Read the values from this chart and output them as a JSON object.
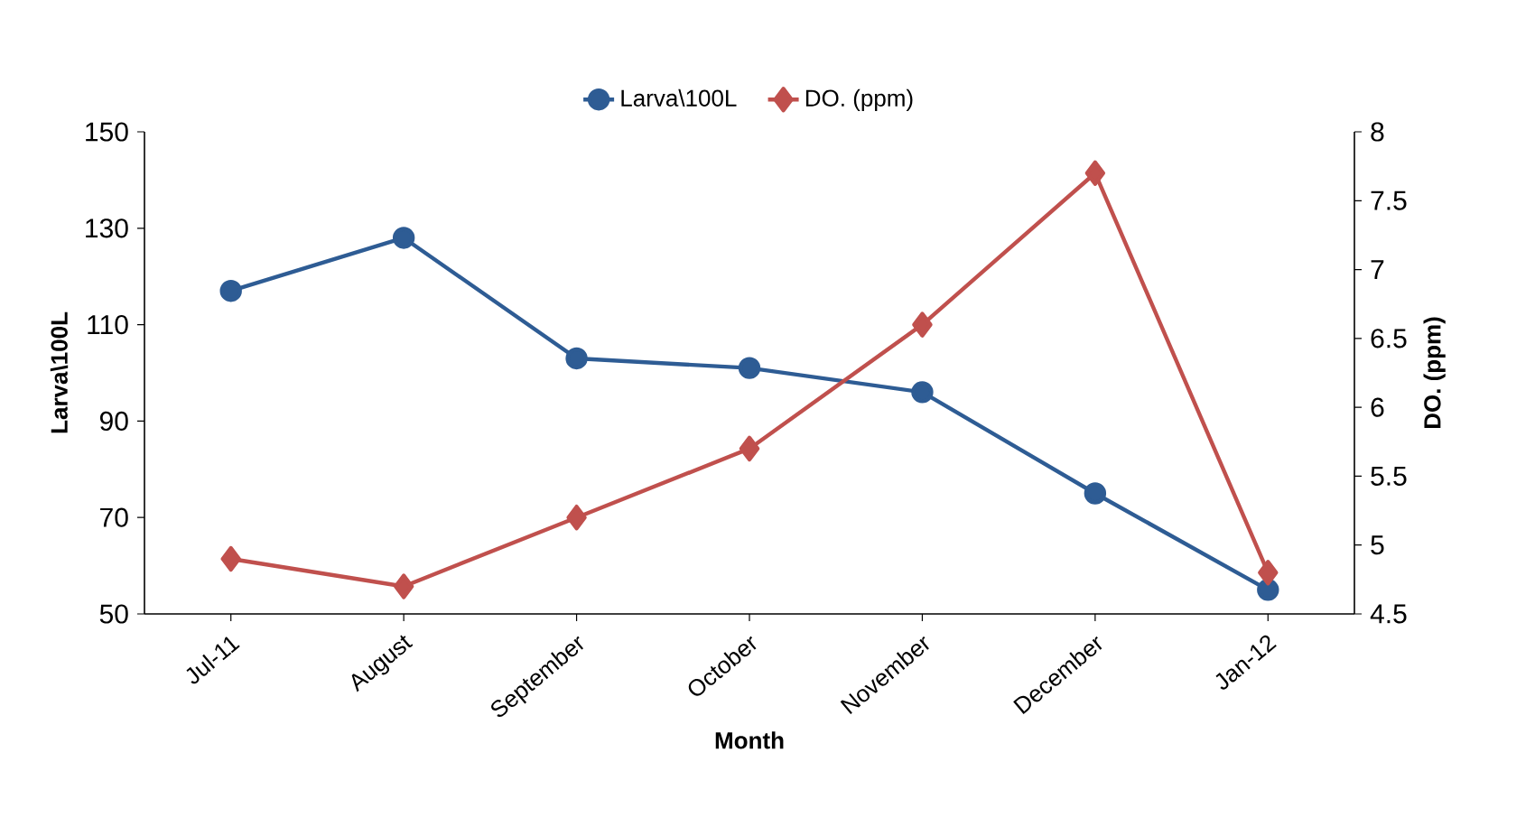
{
  "chart_data": {
    "type": "line",
    "xlabel": "Month",
    "ylabel": "Larva\\100L",
    "y2label": "DO. (ppm)",
    "categories": [
      "Jul-11",
      "August",
      "September",
      "October",
      "November",
      "December",
      "Jan-12"
    ],
    "series": [
      {
        "name": "Larva\\100L",
        "color": "#2e5c94",
        "marker": "circle",
        "values": [
          117,
          128,
          103,
          101,
          96,
          75,
          55
        ]
      },
      {
        "name": "DO. (ppm)",
        "color": "#c0504d",
        "marker": "diamond",
        "axis": "y2",
        "values": [
          4.9,
          4.7,
          5.2,
          5.7,
          6.6,
          7.7,
          4.8
        ]
      }
    ],
    "ylim": [
      50,
      150
    ],
    "yticks": [
      50,
      70,
      90,
      110,
      130,
      150
    ],
    "y2lim": [
      4.5,
      8
    ],
    "y2ticks": [
      4.5,
      5,
      5.5,
      6,
      6.5,
      7,
      7.5,
      8
    ],
    "legend": "top",
    "grid": false
  }
}
